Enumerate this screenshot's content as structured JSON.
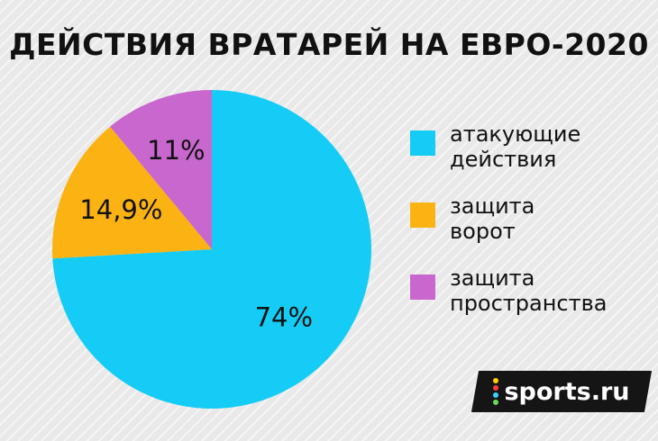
{
  "chart_data": {
    "type": "pie",
    "title": "ДЕЙСТВИЯ ВРАТАРЕЙ НА ЕВРО-2020",
    "slices": [
      {
        "label_lines": [
          "атакующие",
          "действия"
        ],
        "value": 74,
        "display": "74%",
        "color": "#14ccf5"
      },
      {
        "label_lines": [
          "защита",
          "ворот"
        ],
        "value": 14.9,
        "display": "14,9%",
        "color": "#fbb313"
      },
      {
        "label_lines": [
          "защита",
          "пространства"
        ],
        "value": 11,
        "display": "11%",
        "color": "#c867cd"
      }
    ],
    "legend_position": "right"
  },
  "logo": {
    "text": "sports.ru",
    "dot_colors": [
      "#ffd000",
      "#ff3a3a",
      "#3ad1ff",
      "#66dd55"
    ]
  }
}
